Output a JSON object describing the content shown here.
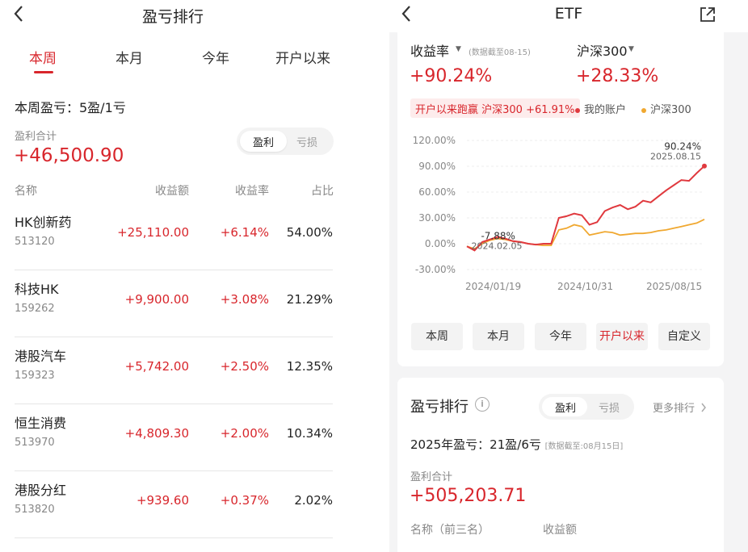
{
  "left": {
    "back_icon": "chevron-left-icon",
    "title": "盈亏排行",
    "tabs": [
      "本周",
      "本月",
      "今年",
      "开户以来"
    ],
    "active_tab": "本周",
    "summary": "本周盈亏：5盈/1亏",
    "total_label": "盈利合计",
    "total_value": "+46,500.90",
    "toggle": {
      "profit": "盈利",
      "loss": "亏损"
    },
    "columns": {
      "name": "名称",
      "amount": "收益额",
      "rate": "收益率",
      "share": "占比"
    },
    "rows": [
      {
        "name": "HK创新药",
        "code": "513120",
        "amount": "+25,110.00",
        "rate": "+6.14%",
        "share": "54.00%"
      },
      {
        "name": "科技HK",
        "code": "159262",
        "amount": "+9,900.00",
        "rate": "+3.08%",
        "share": "21.29%"
      },
      {
        "name": "港股汽车",
        "code": "159323",
        "amount": "+5,742.00",
        "rate": "+2.50%",
        "share": "12.35%"
      },
      {
        "name": "恒生消费",
        "code": "513970",
        "amount": "+4,809.30",
        "rate": "+2.00%",
        "share": "10.34%"
      },
      {
        "name": "港股分红",
        "code": "513820",
        "amount": "+939.60",
        "rate": "+0.37%",
        "share": "2.02%"
      }
    ]
  },
  "right": {
    "back_icon": "chevron-left-icon",
    "title": "ETF",
    "share_icon": "share-external-icon",
    "metric1_label": "收益率",
    "metric1_note": "(数据截至08-15)",
    "metric1_value": "+90.24%",
    "metric2_label": "沪深300",
    "metric2_value": "+28.33%",
    "lead_text": "开户以来跑赢 沪深300 +61.91%",
    "legend_account": "我的账户",
    "legend_index": "沪深300",
    "range_buttons": [
      "本周",
      "本月",
      "今年",
      "开户以来",
      "自定义"
    ],
    "active_range": "开户以来",
    "ranking_title": "盈亏排行",
    "ranking_toggle": {
      "profit": "盈利",
      "loss": "亏损"
    },
    "more_link": "更多排行",
    "year_summary": "2025年盈亏：21盈/6亏",
    "year_note": "[数据截至:08月15日]",
    "total_label": "盈利合计",
    "total_value": "+505,203.71",
    "col_name": "名称（前三名）",
    "col_amount": "收益额"
  },
  "chart_data": {
    "type": "line",
    "y_ticks": [
      "120.00%",
      "90.00%",
      "60.00%",
      "30.00%",
      "0.00%",
      "-30.00%"
    ],
    "ylim": [
      -30,
      120
    ],
    "x_ticks": [
      "2024/01/19",
      "2024/10/31",
      "2025/08/15"
    ],
    "annotations": [
      {
        "label": "-7.88%",
        "date": "2024.02.05",
        "value": -7.88
      },
      {
        "label": "90.24%",
        "date": "2025.08.15",
        "value": 90.24
      }
    ],
    "colors": {
      "account": "#e0393e",
      "index": "#f0a830"
    },
    "series": [
      {
        "name": "我的账户",
        "values": [
          -3,
          -7.88,
          2,
          5,
          8,
          6,
          3,
          2,
          0,
          -1,
          0,
          0,
          30,
          32,
          35,
          33,
          22,
          25,
          38,
          42,
          45,
          40,
          43,
          50,
          48,
          55,
          62,
          68,
          74,
          73,
          82,
          90.24
        ]
      },
      {
        "name": "沪深300",
        "values": [
          -3,
          -6,
          0,
          4,
          6,
          5,
          3,
          2,
          0,
          -1,
          -2,
          -2,
          16,
          18,
          22,
          20,
          10,
          12,
          14,
          13,
          10,
          11,
          12,
          12,
          13,
          15,
          16,
          18,
          20,
          22,
          24,
          28.33
        ]
      }
    ]
  }
}
